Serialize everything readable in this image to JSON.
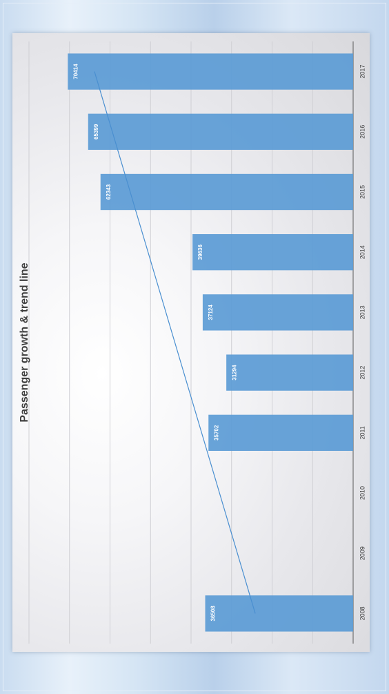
{
  "chart_data": {
    "type": "bar",
    "title": "Passenger growth & trend line",
    "categories": [
      "2008",
      "2009",
      "2010",
      "2011",
      "2012",
      "2013",
      "2014",
      "2015",
      "2016",
      "2017"
    ],
    "values": [
      36508,
      null,
      null,
      35702,
      31294,
      37124,
      39636,
      62343,
      65399,
      70414
    ],
    "data_labels": [
      "36508",
      "",
      "",
      "35702",
      "31294",
      "37124",
      "39636",
      "62343",
      "65399",
      "70414"
    ],
    "trendline": {
      "type": "linear",
      "from_category": "2008",
      "to_category": "2017"
    },
    "ylim": [
      0,
      80000
    ],
    "grid": true,
    "legend": "none",
    "orientation": "rotated-90",
    "colors": {
      "bar": "#5b9bd5",
      "trend": "#4a8fd0",
      "grid": "#cfcfd4",
      "axis": "#595959"
    }
  }
}
